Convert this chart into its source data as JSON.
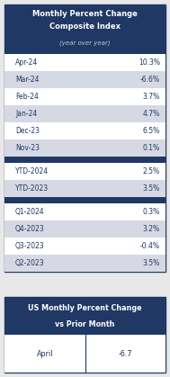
{
  "title_line1": "Monthly Percent Change",
  "title_line2": "Composite Index",
  "title_line3": "(year over year)",
  "header_bg": "#1f3864",
  "header_text_color": "#ffffff",
  "subtitle_text_color": "#c9c9d4",
  "rows": [
    {
      "label": "Apr-24",
      "value": "10.3%",
      "bg": "#ffffff"
    },
    {
      "label": "Mar-24",
      "value": "-6.6%",
      "bg": "#d6d9e3"
    },
    {
      "label": "Feb-24",
      "value": "3.7%",
      "bg": "#ffffff"
    },
    {
      "label": "Jan-24",
      "value": "4.7%",
      "bg": "#d6d9e3"
    },
    {
      "label": "Dec-23",
      "value": "6.5%",
      "bg": "#ffffff"
    },
    {
      "label": "Nov-23",
      "value": "0.1%",
      "bg": "#d6d9e3"
    }
  ],
  "ytd_rows": [
    {
      "label": "YTD-2024",
      "value": "2.5%",
      "bg": "#ffffff"
    },
    {
      "label": "YTD-2023",
      "value": "3.5%",
      "bg": "#d6d9e3"
    }
  ],
  "quarterly_rows": [
    {
      "label": "Q1-2024",
      "value": "0.3%",
      "bg": "#ffffff"
    },
    {
      "label": "Q4-2023",
      "value": "3.2%",
      "bg": "#d6d9e3"
    },
    {
      "label": "Q3-2023",
      "value": "-0.4%",
      "bg": "#ffffff"
    },
    {
      "label": "Q2-2023",
      "value": "3.5%",
      "bg": "#d6d9e3"
    }
  ],
  "bottom_title_line1": "US Monthly Percent Change",
  "bottom_title_line2": "vs Prior Month",
  "bottom_row_label": "April",
  "bottom_row_value": "-6.7",
  "border_color": "#1f3864",
  "row_text_color": "#1f3864",
  "outer_bg": "#e8e8e8",
  "fig_w": 1.89,
  "fig_h": 4.19,
  "dpi": 100
}
